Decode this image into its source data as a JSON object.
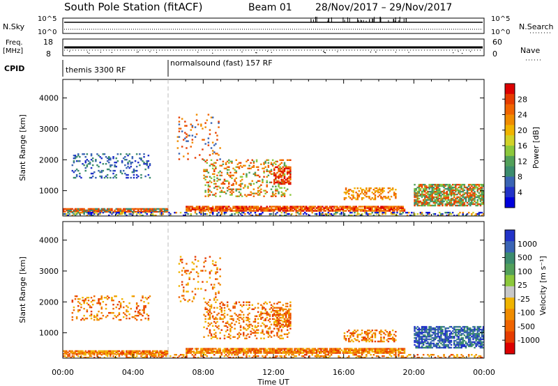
{
  "header": {
    "title": "South Pole Station (fitACF)",
    "beam": "Beam 01",
    "dates": "28/Nov/2017 – 29/Nov/2017"
  },
  "strips": {
    "nsky": {
      "label": "N.Sky",
      "ytick_top": "10^5",
      "ytick_bottom": "10^0",
      "ylim": [
        1,
        100000
      ]
    },
    "nsearch": {
      "label": "N.Search",
      "ytick_top": "10^5",
      "ytick_bottom": "10^0"
    },
    "freq": {
      "label_line1": "Freq.",
      "label_line2": "[MHz]",
      "ytick_top": "18",
      "ytick_bottom": "8",
      "ylim": [
        8,
        18
      ]
    },
    "nave": {
      "label": "Nave",
      "ytick_top": "60",
      "ytick_bottom": "0",
      "ylim": [
        0,
        60
      ]
    },
    "cpid": {
      "label": "CPID",
      "segments": [
        {
          "name": "themis 3300 RF",
          "start": 0,
          "end": 6
        },
        {
          "name": "normalsound (fast) 157 RF",
          "start": 6,
          "end": 24
        }
      ]
    }
  },
  "chart_data": [
    {
      "type": "heatmap",
      "panel": "power",
      "xlabel": "Time UT",
      "ylabel": "Slant Range [km]",
      "xticks": [
        "00:00",
        "04:00",
        "08:00",
        "12:00",
        "16:00",
        "20:00",
        "00:00"
      ],
      "xlim": [
        0,
        24
      ],
      "yticks": [
        "1000",
        "2000",
        "3000",
        "4000"
      ],
      "ylim": [
        180,
        4600
      ],
      "colorbar": {
        "label": "Power [dB]",
        "ticks": [
          "4",
          "8",
          "12",
          "16",
          "20",
          "24",
          "28"
        ],
        "range": [
          0,
          31
        ],
        "colors": [
          "#0000dc",
          "#2233c8",
          "#3a64b4",
          "#3c8c6e",
          "#52a05a",
          "#8cc83c",
          "#d2d228",
          "#f0b400",
          "#f08c00",
          "#f06400",
          "#e63c00",
          "#dc0000"
        ]
      }
    },
    {
      "type": "heatmap",
      "panel": "velocity",
      "xlabel": "Time UT",
      "ylabel": "Slant Range [km]",
      "xticks": [
        "00:00",
        "04:00",
        "08:00",
        "12:00",
        "16:00",
        "20:00",
        "00:00"
      ],
      "xlim": [
        0,
        24
      ],
      "yticks": [
        "1000",
        "2000",
        "3000",
        "4000"
      ],
      "ylim": [
        180,
        4600
      ],
      "colorbar": {
        "label": "Velocity [m s⁻¹]",
        "ticks": [
          "1000",
          "500",
          "100",
          "25",
          "-25",
          "-100",
          "-500",
          "-1000"
        ],
        "colors": [
          "#2233c8",
          "#3a64b4",
          "#3c8c6e",
          "#52a05a",
          "#8cc83c",
          "#c8c8c8",
          "#f0b400",
          "#f08c00",
          "#f06400",
          "#e63c00",
          "#dc0000"
        ]
      }
    }
  ]
}
